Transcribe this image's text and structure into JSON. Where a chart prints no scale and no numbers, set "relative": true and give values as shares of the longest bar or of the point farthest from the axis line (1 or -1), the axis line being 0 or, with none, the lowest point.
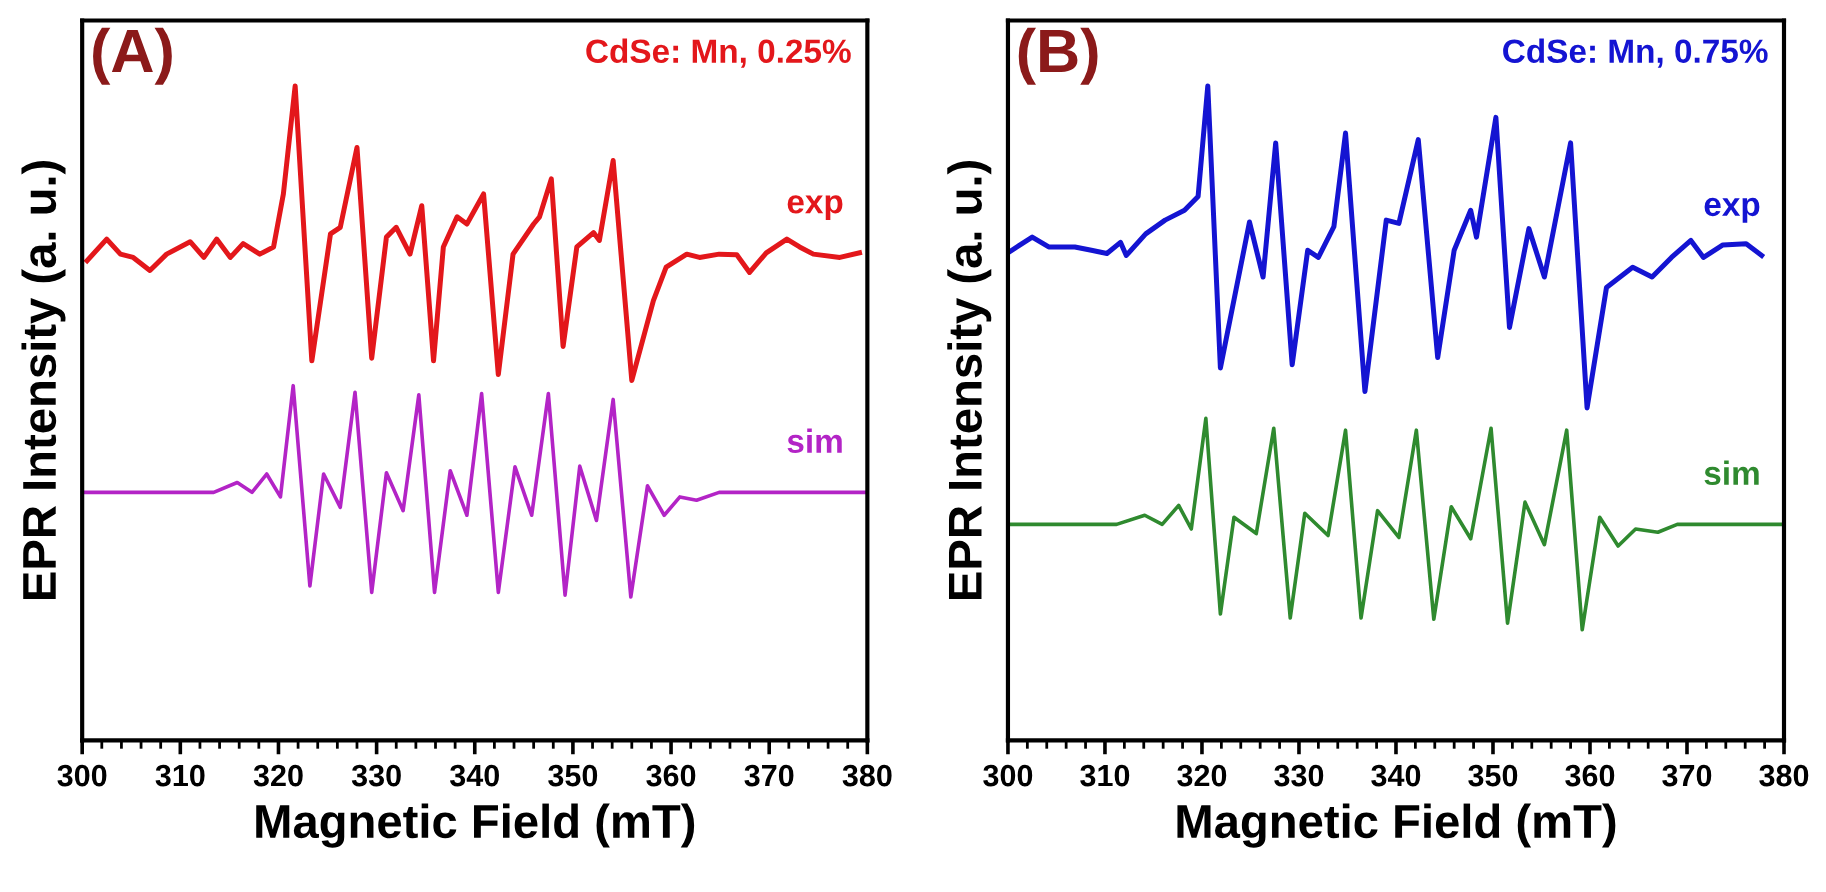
{
  "chart_data": [
    {
      "type": "line",
      "title": "(A)",
      "subtitle": "CdSe: Mn, 0.25%",
      "xlabel": "Magnetic Field (mT)",
      "ylabel": "EPR Intensity (a. u.)",
      "relative": true,
      "tick_labels": "x",
      "grid": false,
      "legend": false,
      "xlim": [
        300,
        380
      ],
      "xticks": [
        300,
        310,
        320,
        330,
        340,
        350,
        360,
        370,
        380
      ],
      "series": [
        {
          "name": "exp",
          "color": "#e3171b",
          "x": [
            300.5,
            302.5,
            303.9,
            305.2,
            306.9,
            308.6,
            311.0,
            312.4,
            313.7,
            315.1,
            316.4,
            318.1,
            319.5,
            320.5,
            321.7,
            323.4,
            325.3,
            326.3,
            328.0,
            329.5,
            331.0,
            332.0,
            333.4,
            334.6,
            335.8,
            336.8,
            338.2,
            339.2,
            340.9,
            342.4,
            343.9,
            346.0,
            346.6,
            347.8,
            349.0,
            350.4,
            352.1,
            352.7,
            354.1,
            356.0,
            358.2,
            359.5,
            361.6,
            362.9,
            364.9,
            366.7,
            368.0,
            369.7,
            371.8,
            373.1,
            374.5,
            377.2,
            379.2
          ],
          "values": [
            0.733,
            0.766,
            0.743,
            0.738,
            0.718,
            0.743,
            0.762,
            0.738,
            0.766,
            0.738,
            0.759,
            0.743,
            0.754,
            0.835,
            1.0,
            0.58,
            0.774,
            0.784,
            0.906,
            0.584,
            0.769,
            0.784,
            0.743,
            0.817,
            0.58,
            0.754,
            0.8,
            0.789,
            0.835,
            0.559,
            0.743,
            0.789,
            0.8,
            0.858,
            0.602,
            0.754,
            0.776,
            0.764,
            0.886,
            0.55,
            0.672,
            0.723,
            0.743,
            0.738,
            0.743,
            0.742,
            0.715,
            0.745,
            0.766,
            0.754,
            0.743,
            0.738,
            0.745
          ]
        },
        {
          "name": "sim",
          "color": "#b324c6",
          "x": [
            300.1,
            313.4,
            315.8,
            317.3,
            318.8,
            320.2,
            321.5,
            323.2,
            324.6,
            326.3,
            327.8,
            329.5,
            331.0,
            332.7,
            334.3,
            335.9,
            337.5,
            339.2,
            340.7,
            342.4,
            344.1,
            345.8,
            347.5,
            349.2,
            350.7,
            352.4,
            354.1,
            355.9,
            357.6,
            359.3,
            360.9,
            362.6,
            364.9,
            380.0
          ],
          "values": [
            0.379,
            0.379,
            0.394,
            0.379,
            0.407,
            0.372,
            0.542,
            0.236,
            0.407,
            0.356,
            0.532,
            0.226,
            0.409,
            0.351,
            0.528,
            0.226,
            0.412,
            0.344,
            0.53,
            0.226,
            0.418,
            0.344,
            0.53,
            0.222,
            0.419,
            0.336,
            0.521,
            0.219,
            0.389,
            0.344,
            0.372,
            0.367,
            0.379,
            0.379
          ]
        }
      ]
    },
    {
      "type": "line",
      "title": "(B)",
      "subtitle": "CdSe: Mn, 0.75%",
      "xlabel": "Magnetic Field (mT)",
      "ylabel": "EPR Intensity (a. u.)",
      "relative": true,
      "tick_labels": "x",
      "grid": false,
      "legend": false,
      "xlim": [
        300,
        380
      ],
      "xticks": [
        300,
        310,
        320,
        330,
        340,
        350,
        360,
        370,
        380
      ],
      "series": [
        {
          "name": "exp",
          "color": "#1414d2",
          "x": [
            300.2,
            302.5,
            304.2,
            306.9,
            308.6,
            310.2,
            311.6,
            312.2,
            314.2,
            316.2,
            318.2,
            319.6,
            320.6,
            321.9,
            324.9,
            326.3,
            327.6,
            329.3,
            330.9,
            332.0,
            333.6,
            334.8,
            336.8,
            339.0,
            340.3,
            342.3,
            344.3,
            346.0,
            347.7,
            348.3,
            350.3,
            351.7,
            353.7,
            355.3,
            358.0,
            359.7,
            361.7,
            364.4,
            366.4,
            368.4,
            370.4,
            371.7,
            373.7,
            376.1,
            377.7
          ],
          "values": [
            0.747,
            0.769,
            0.754,
            0.754,
            0.749,
            0.744,
            0.761,
            0.741,
            0.774,
            0.795,
            0.81,
            0.831,
            1.0,
            0.569,
            0.792,
            0.708,
            0.913,
            0.574,
            0.749,
            0.738,
            0.785,
            0.928,
            0.533,
            0.795,
            0.79,
            0.918,
            0.585,
            0.749,
            0.81,
            0.769,
            0.952,
            0.631,
            0.782,
            0.708,
            0.913,
            0.508,
            0.692,
            0.723,
            0.708,
            0.738,
            0.764,
            0.738,
            0.757,
            0.759,
            0.741
          ]
        },
        {
          "name": "sim",
          "color": "#2f8a2f",
          "x": [
            300.0,
            311.2,
            314.1,
            315.9,
            317.6,
            318.9,
            320.4,
            321.9,
            323.3,
            325.6,
            327.4,
            329.1,
            330.6,
            333.0,
            334.8,
            336.4,
            338.1,
            340.3,
            342.1,
            343.9,
            345.7,
            347.7,
            349.8,
            351.5,
            353.3,
            355.3,
            357.6,
            359.2,
            361.0,
            362.9,
            364.7,
            367.0,
            369.0,
            380.0
          ],
          "values": [
            0.33,
            0.33,
            0.344,
            0.33,
            0.359,
            0.323,
            0.492,
            0.193,
            0.341,
            0.316,
            0.477,
            0.187,
            0.347,
            0.313,
            0.474,
            0.187,
            0.351,
            0.31,
            0.474,
            0.185,
            0.357,
            0.308,
            0.477,
            0.179,
            0.364,
            0.299,
            0.474,
            0.169,
            0.341,
            0.297,
            0.323,
            0.318,
            0.33,
            0.33
          ]
        }
      ]
    }
  ]
}
